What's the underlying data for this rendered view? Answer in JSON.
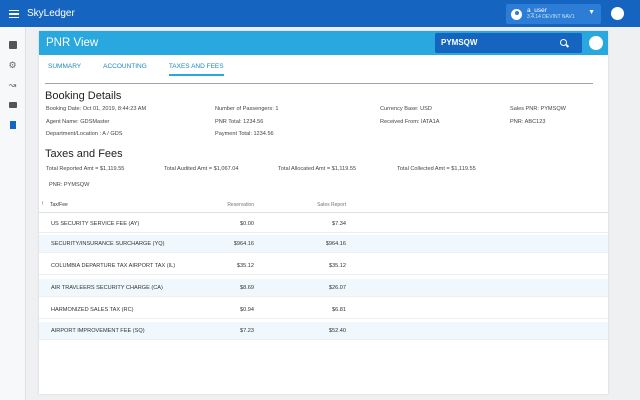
{
  "app": {
    "name": "SkyLedger"
  },
  "user": {
    "name": "a_user",
    "sub": "3.4.14 DEVINT NAV1"
  },
  "panel": {
    "title": "PNR View",
    "search_value": "PYMSQW"
  },
  "tabs": [
    "SUMMARY",
    "ACCOUNTING",
    "TAXES AND FEES"
  ],
  "booking": {
    "title": "Booking Details",
    "booking_date": "Booking Date: Oct 01, 2019, 8:44:23 AM",
    "agent_name": "Agent Name: GDSMaster",
    "department": "Department/Location : A / GDS",
    "passengers": "Number of Passengers: 1",
    "pnr_total": "PNR Total: 1234.56",
    "payment_total": "Payment Total: 1234.56",
    "currency": "Currency Base: USD",
    "received_from": "Received From: IATA1A",
    "sales_pnr": "Sales PNR: PYMSQW",
    "pnr": "PNR: ABC123"
  },
  "taxes": {
    "title": "Taxes and Fees",
    "total_reported": "Total Reported Amt = $1,119.55",
    "total_audited": "Total Audited  Amt = $1,067.04",
    "total_allocated": "Total Allocated  Amt = $1,119.55",
    "total_collected": "Total Collected  Amt = $1,119.55",
    "pnr_label": "PNR: PYMSQW",
    "columns": {
      "name": "Tax/Fee",
      "reservation": "Reservation",
      "sales": "Sales Report"
    },
    "rows": [
      {
        "name": "US SECURITY SERVICE FEE (AY)",
        "reservation": "$0.00",
        "sales": "$7.34"
      },
      {
        "name": "SECURITY/INSURANCE SURCHARGE (YQ)",
        "reservation": "$964.16",
        "sales": "$964.16"
      },
      {
        "name": "COLUMBIA DEPARTURE TAX AIRPORT TAX (IL)",
        "reservation": "$35.12",
        "sales": "$35.12"
      },
      {
        "name": "AIR TRAVLEERS SECURITY CHARGE (CA)",
        "reservation": "$8.69",
        "sales": "$26.07"
      },
      {
        "name": "HARMONIZED SALES TAX (RC)",
        "reservation": "$0.94",
        "sales": "$6.81"
      },
      {
        "name": "AIRPORT IMPROVEMENT FEE (SQ)",
        "reservation": "$7.23",
        "sales": "$52.40"
      }
    ]
  }
}
